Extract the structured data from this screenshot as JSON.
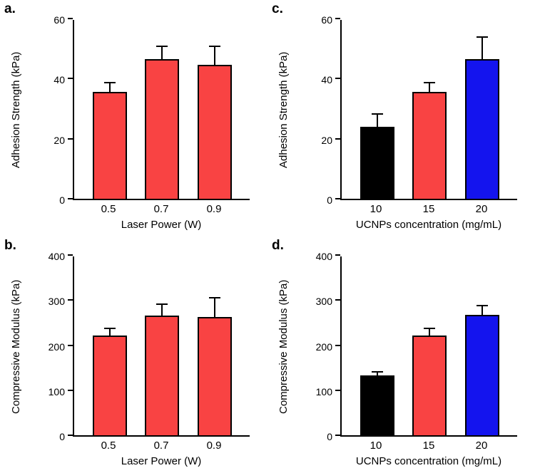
{
  "chart_data": [
    {
      "panel": "a.",
      "type": "bar",
      "categories": [
        "0.5",
        "0.7",
        "0.9"
      ],
      "values": [
        35.5,
        46.5,
        44.5
      ],
      "errors": [
        3.5,
        4.5,
        6.5
      ],
      "colors": [
        "#f94343",
        "#f94343",
        "#f94343"
      ],
      "title": "",
      "xlabel": "Laser Power (W)",
      "ylabel": "Adhesion Strength (kPa)",
      "ylim": [
        0,
        60
      ],
      "yticks": [
        0,
        20,
        40,
        60
      ],
      "grid": false,
      "legend": "none"
    },
    {
      "panel": "b.",
      "type": "bar",
      "categories": [
        "0.5",
        "0.7",
        "0.9"
      ],
      "values": [
        222,
        265,
        263
      ],
      "errors": [
        16,
        28,
        44
      ],
      "colors": [
        "#f94343",
        "#f94343",
        "#f94343"
      ],
      "title": "",
      "xlabel": "Laser Power (W)",
      "ylabel": "Compressive Modulus (kPa)",
      "ylim": [
        0,
        400
      ],
      "yticks": [
        0,
        100,
        200,
        300,
        400
      ],
      "grid": false,
      "legend": "none"
    },
    {
      "panel": "c.",
      "type": "bar",
      "categories": [
        "10",
        "15",
        "20"
      ],
      "values": [
        24,
        35.5,
        46.5
      ],
      "errors": [
        4.5,
        3.5,
        7.5
      ],
      "colors": [
        "#000000",
        "#f94343",
        "#1414ee"
      ],
      "title": "",
      "xlabel": "UCNPs concentration (mg/mL)",
      "ylabel": "Adhesion Strength (kPa)",
      "ylim": [
        0,
        60
      ],
      "yticks": [
        0,
        20,
        40,
        60
      ],
      "grid": false,
      "legend": "none"
    },
    {
      "panel": "d.",
      "type": "bar",
      "categories": [
        "10",
        "15",
        "20"
      ],
      "values": [
        133,
        222,
        268
      ],
      "errors": [
        10,
        16,
        22
      ],
      "colors": [
        "#000000",
        "#f94343",
        "#1414ee"
      ],
      "title": "",
      "xlabel": "UCNPs concentration (mg/mL)",
      "ylabel": "Compressive Modulus (kPa)",
      "ylim": [
        0,
        400
      ],
      "yticks": [
        0,
        100,
        200,
        300,
        400
      ],
      "grid": false,
      "legend": "none"
    }
  ]
}
